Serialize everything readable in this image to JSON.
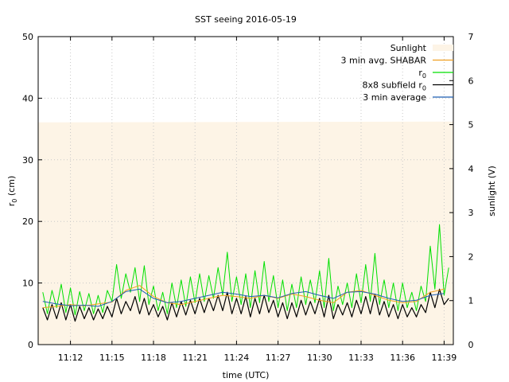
{
  "chart_data": {
    "type": "line",
    "title": "SST seeing 2016-05-19",
    "xlabel": "time (UTC)",
    "ylabel": "r0 (cm)",
    "ylabel_main": "r",
    "ylabel_sub": "0",
    "ylabel_unit": " (cm)",
    "y2label": "sunlight (V)",
    "xlim": [
      "11:09:40",
      "11:39:40"
    ],
    "ylim": [
      0,
      50
    ],
    "y2lim": [
      0,
      7
    ],
    "grid": true,
    "legend_position": "top-right",
    "x_ticks": [
      "11:12",
      "11:15",
      "11:18",
      "11:21",
      "11:24",
      "11:27",
      "11:30",
      "11:33",
      "11:36",
      "11:39"
    ],
    "y_ticks": [
      "0",
      "10",
      "20",
      "30",
      "40",
      "50"
    ],
    "y2_ticks": [
      "0",
      "1",
      "2",
      "3",
      "4",
      "5",
      "6",
      "7"
    ],
    "legend": [
      {
        "label": "Sunlight",
        "series": "sunlight"
      },
      {
        "label": "3 min avg. SHABAR",
        "series": "shabar_avg"
      },
      {
        "label": "r",
        "sub": "0",
        "series": "r0"
      },
      {
        "label": "8x8 subfield r",
        "sub": "0",
        "series": "subfield_r0"
      },
      {
        "label": "3 min average",
        "series": "avg3"
      }
    ],
    "series": [
      {
        "id": "sunlight",
        "name": "Sunlight",
        "color": "#fdf4e6",
        "axis": "y2",
        "kind": "area",
        "x": [
          "11:09:40",
          "11:39:40"
        ],
        "values": [
          5.05,
          5.07
        ]
      },
      {
        "id": "shabar_avg",
        "name": "3 min avg. SHABAR",
        "color": "#f0a020",
        "axis": "y",
        "x": [
          "11:10:00",
          "11:11:00",
          "11:12:00",
          "11:13:00",
          "11:14:00",
          "11:15:00",
          "11:16:00",
          "11:17:00",
          "11:18:00",
          "11:19:00",
          "11:20:00",
          "11:21:00",
          "11:22:00",
          "11:23:00",
          "11:24:00",
          "11:25:00",
          "11:26:00",
          "11:27:00",
          "11:28:00",
          "11:29:00",
          "11:30:00",
          "11:31:00",
          "11:32:00",
          "11:33:00",
          "11:34:00",
          "11:35:00",
          "11:36:00",
          "11:37:00",
          "11:38:00",
          "11:39:00"
        ],
        "values": [
          6.0,
          6.2,
          6.5,
          6.3,
          6.6,
          6.9,
          8.8,
          9.6,
          7.8,
          6.8,
          6.5,
          7.0,
          7.5,
          8.0,
          7.8,
          7.5,
          8.0,
          7.5,
          8.2,
          7.8,
          7.2,
          6.8,
          8.5,
          8.8,
          8.0,
          7.2,
          6.8,
          7.0,
          8.5,
          9.0
        ]
      },
      {
        "id": "r0",
        "name": "r0",
        "color": "#00e000",
        "axis": "y",
        "x": [
          "11:10:00",
          "11:10:20",
          "11:10:40",
          "11:11:00",
          "11:11:20",
          "11:11:40",
          "11:12:00",
          "11:12:20",
          "11:12:40",
          "11:13:00",
          "11:13:20",
          "11:13:40",
          "11:14:00",
          "11:14:20",
          "11:14:40",
          "11:15:00",
          "11:15:20",
          "11:15:40",
          "11:16:00",
          "11:16:20",
          "11:16:40",
          "11:17:00",
          "11:17:20",
          "11:17:40",
          "11:18:00",
          "11:18:20",
          "11:18:40",
          "11:19:00",
          "11:19:20",
          "11:19:40",
          "11:20:00",
          "11:20:20",
          "11:20:40",
          "11:21:00",
          "11:21:20",
          "11:21:40",
          "11:22:00",
          "11:22:20",
          "11:22:40",
          "11:23:00",
          "11:23:20",
          "11:23:40",
          "11:24:00",
          "11:24:20",
          "11:24:40",
          "11:25:00",
          "11:25:20",
          "11:25:40",
          "11:26:00",
          "11:26:20",
          "11:26:40",
          "11:27:00",
          "11:27:20",
          "11:27:40",
          "11:28:00",
          "11:28:20",
          "11:28:40",
          "11:29:00",
          "11:29:20",
          "11:29:40",
          "11:30:00",
          "11:30:20",
          "11:30:40",
          "11:31:00",
          "11:31:20",
          "11:31:40",
          "11:32:00",
          "11:32:20",
          "11:32:40",
          "11:33:00",
          "11:33:20",
          "11:33:40",
          "11:34:00",
          "11:34:20",
          "11:34:40",
          "11:35:00",
          "11:35:20",
          "11:35:40",
          "11:36:00",
          "11:36:20",
          "11:36:40",
          "11:37:00",
          "11:37:20",
          "11:37:40",
          "11:38:00",
          "11:38:20",
          "11:38:40",
          "11:39:00",
          "11:39:20"
        ],
        "values": [
          8.5,
          5.0,
          8.8,
          6.0,
          9.8,
          5.2,
          9.2,
          4.8,
          8.6,
          5.5,
          8.3,
          5.0,
          8.0,
          5.2,
          8.8,
          7.0,
          13.0,
          7.5,
          11.5,
          8.5,
          12.5,
          7.0,
          12.8,
          6.5,
          9.5,
          5.5,
          8.5,
          5.0,
          10.0,
          6.0,
          10.5,
          6.2,
          11.0,
          6.8,
          11.5,
          7.0,
          11.2,
          7.5,
          12.5,
          8.0,
          15.0,
          7.0,
          11.0,
          6.5,
          11.5,
          6.0,
          12.0,
          6.8,
          13.5,
          7.0,
          11.2,
          6.0,
          10.5,
          5.5,
          9.8,
          6.0,
          11.0,
          6.5,
          10.5,
          6.8,
          12.0,
          6.0,
          14.0,
          5.5,
          9.5,
          6.5,
          10.0,
          6.0,
          11.5,
          6.8,
          13.0,
          7.0,
          14.8,
          6.5,
          10.5,
          6.0,
          10.0,
          5.5,
          10.0,
          6.0,
          8.5,
          5.5,
          9.5,
          7.0,
          16.0,
          9.0,
          19.5,
          8.0,
          12.5
        ]
      },
      {
        "id": "subfield_r0",
        "name": "8x8 subfield r0",
        "color": "#000000",
        "axis": "y",
        "x": [
          "11:10:00",
          "11:10:20",
          "11:10:40",
          "11:11:00",
          "11:11:20",
          "11:11:40",
          "11:12:00",
          "11:12:20",
          "11:12:40",
          "11:13:00",
          "11:13:20",
          "11:13:40",
          "11:14:00",
          "11:14:20",
          "11:14:40",
          "11:15:00",
          "11:15:20",
          "11:15:40",
          "11:16:00",
          "11:16:20",
          "11:16:40",
          "11:17:00",
          "11:17:20",
          "11:17:40",
          "11:18:00",
          "11:18:20",
          "11:18:40",
          "11:19:00",
          "11:19:20",
          "11:19:40",
          "11:20:00",
          "11:20:20",
          "11:20:40",
          "11:21:00",
          "11:21:20",
          "11:21:40",
          "11:22:00",
          "11:22:20",
          "11:22:40",
          "11:23:00",
          "11:23:20",
          "11:23:40",
          "11:24:00",
          "11:24:20",
          "11:24:40",
          "11:25:00",
          "11:25:20",
          "11:25:40",
          "11:26:00",
          "11:26:20",
          "11:26:40",
          "11:27:00",
          "11:27:20",
          "11:27:40",
          "11:28:00",
          "11:28:20",
          "11:28:40",
          "11:29:00",
          "11:29:20",
          "11:29:40",
          "11:30:00",
          "11:30:20",
          "11:30:40",
          "11:31:00",
          "11:31:20",
          "11:31:40",
          "11:32:00",
          "11:32:20",
          "11:32:40",
          "11:33:00",
          "11:33:20",
          "11:33:40",
          "11:34:00",
          "11:34:20",
          "11:34:40",
          "11:35:00",
          "11:35:20",
          "11:35:40",
          "11:36:00",
          "11:36:20",
          "11:36:40",
          "11:37:00",
          "11:37:20",
          "11:37:40",
          "11:38:00",
          "11:38:20",
          "11:38:40",
          "11:39:00",
          "11:39:20"
        ],
        "values": [
          6.0,
          4.0,
          6.5,
          4.2,
          6.8,
          4.0,
          6.5,
          3.8,
          6.2,
          4.2,
          6.0,
          4.0,
          5.8,
          4.2,
          6.2,
          4.5,
          7.5,
          5.0,
          7.0,
          5.5,
          7.8,
          5.0,
          7.5,
          4.8,
          6.5,
          4.5,
          6.2,
          4.0,
          6.8,
          4.5,
          7.0,
          4.8,
          7.2,
          5.0,
          7.5,
          5.2,
          7.5,
          5.5,
          8.0,
          5.5,
          8.5,
          5.0,
          7.5,
          5.0,
          7.8,
          4.5,
          7.5,
          5.0,
          8.0,
          5.2,
          7.2,
          4.5,
          6.8,
          4.2,
          6.8,
          4.5,
          7.2,
          4.8,
          7.0,
          5.0,
          7.5,
          4.5,
          8.0,
          4.2,
          6.5,
          4.8,
          6.8,
          4.5,
          7.2,
          5.0,
          7.8,
          5.0,
          8.2,
          4.8,
          7.0,
          4.5,
          6.5,
          4.2,
          6.5,
          4.5,
          6.0,
          4.5,
          6.5,
          5.2,
          8.5,
          6.0,
          9.0,
          6.5,
          7.5
        ]
      },
      {
        "id": "avg3",
        "name": "3 min average",
        "color": "#1f5fb5",
        "axis": "y",
        "x": [
          "11:10:00",
          "11:11:00",
          "11:12:00",
          "11:13:00",
          "11:14:00",
          "11:15:00",
          "11:16:00",
          "11:17:00",
          "11:18:00",
          "11:19:00",
          "11:20:00",
          "11:21:00",
          "11:22:00",
          "11:23:00",
          "11:24:00",
          "11:25:00",
          "11:26:00",
          "11:27:00",
          "11:28:00",
          "11:29:00",
          "11:30:00",
          "11:31:00",
          "11:32:00",
          "11:33:00",
          "11:34:00",
          "11:35:00",
          "11:36:00",
          "11:37:00",
          "11:38:00",
          "11:39:00"
        ],
        "values": [
          7.0,
          6.6,
          6.3,
          6.4,
          6.2,
          7.0,
          8.6,
          9.0,
          7.5,
          6.8,
          7.0,
          7.5,
          8.0,
          8.5,
          8.2,
          7.8,
          8.0,
          7.6,
          8.3,
          8.6,
          8.0,
          7.5,
          8.5,
          8.6,
          8.2,
          7.5,
          7.0,
          7.2,
          8.0,
          8.3
        ]
      }
    ]
  }
}
